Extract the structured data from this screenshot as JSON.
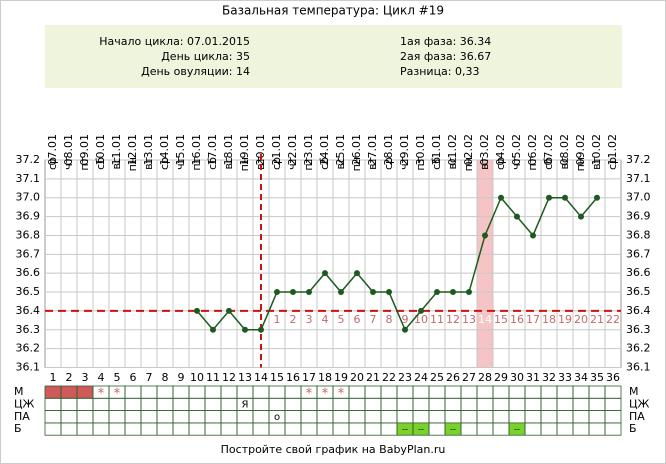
{
  "title": "Базальная температура: Цикл #19",
  "info": {
    "left": [
      "Начало цикла: 07.01.2015",
      "День цикла: 35",
      "День овуляции: 14"
    ],
    "right": [
      "1ая фаза: 36.34",
      "2ая фаза: 36.67",
      "Разница: 0,33"
    ]
  },
  "chart_data": {
    "type": "line",
    "categories": [
      1,
      2,
      3,
      4,
      5,
      6,
      7,
      8,
      9,
      10,
      11,
      12,
      13,
      14,
      15,
      16,
      17,
      18,
      19,
      20,
      21,
      22,
      23,
      24,
      25,
      26,
      27,
      28,
      29,
      30,
      31,
      32,
      33,
      34,
      35,
      36
    ],
    "dates": [
      "07.01",
      "08.01",
      "09.01",
      "10.01",
      "11.01",
      "12.01",
      "13.01",
      "14.01",
      "15.01",
      "16.01",
      "17.01",
      "18.01",
      "19.01",
      "20.01",
      "21.01",
      "22.01",
      "23.01",
      "24.01",
      "25.01",
      "26.01",
      "27.01",
      "28.01",
      "29.01",
      "30.01",
      "31.01",
      "01.02",
      "02.02",
      "03.02",
      "04.02",
      "05.02",
      "06.02",
      "07.02",
      "08.02",
      "09.02",
      "10.02",
      "11.02"
    ],
    "weekdays": [
      "ср",
      "чт",
      "пт",
      "сб",
      "вс",
      "пн",
      "вт",
      "ср",
      "чт",
      "пт",
      "сб",
      "вс",
      "пн",
      "вт",
      "ср",
      "чт",
      "пт",
      "сб",
      "вс",
      "пн",
      "вт",
      "ср",
      "чт",
      "пт",
      "сб",
      "вс",
      "пн",
      "вт",
      "ср",
      "чт",
      "пт",
      "сб",
      "вс",
      "пн",
      "вт",
      "ср"
    ],
    "series": [
      {
        "color": "#1e5a1e",
        "values": [
          null,
          null,
          null,
          null,
          null,
          null,
          null,
          null,
          null,
          36.4,
          36.3,
          36.4,
          36.3,
          36.3,
          36.5,
          36.5,
          36.5,
          36.6,
          36.5,
          36.6,
          36.5,
          36.5,
          36.3,
          36.4,
          36.5,
          36.5,
          36.5,
          36.8,
          37.0,
          36.9,
          36.8,
          37.0,
          37.0,
          36.9,
          37.0,
          null
        ]
      }
    ],
    "ylim": [
      36.1,
      37.2
    ],
    "yticks": [
      36.1,
      36.2,
      36.3,
      36.4,
      36.5,
      36.6,
      36.7,
      36.8,
      36.9,
      {
        "value": 37,
        "label": "37.0"
      },
      37.1,
      37.2
    ],
    "grid": true,
    "coverline": 36.4,
    "ovulation_day": 14,
    "highlight_day": 28,
    "moon_days": [
      4,
      34
    ],
    "luteal_days": [
      null,
      null,
      null,
      null,
      null,
      null,
      null,
      null,
      null,
      null,
      null,
      null,
      null,
      null,
      1,
      2,
      3,
      4,
      5,
      6,
      7,
      8,
      9,
      10,
      11,
      12,
      13,
      14,
      15,
      16,
      17,
      18,
      19,
      20,
      21,
      22
    ]
  },
  "table": {
    "rows": [
      {
        "label": "М",
        "fill_days": [
          1,
          2,
          3
        ],
        "fill_color": "#d05a5a",
        "cells": [
          null,
          null,
          null,
          "*",
          "*",
          null,
          null,
          null,
          null,
          null,
          null,
          null,
          null,
          null,
          null,
          null,
          "*",
          "*",
          "*",
          null,
          null,
          null,
          null,
          null,
          null,
          null,
          null,
          null,
          null,
          null,
          null,
          null,
          null,
          null,
          null,
          null
        ]
      },
      {
        "label": "ЦЖ",
        "fill_days": [],
        "fill_color": "#fff",
        "cells": [
          null,
          null,
          null,
          null,
          null,
          null,
          null,
          null,
          null,
          null,
          null,
          null,
          "Я",
          null,
          null,
          null,
          null,
          null,
          null,
          null,
          null,
          null,
          null,
          null,
          null,
          null,
          null,
          null,
          null,
          null,
          null,
          null,
          null,
          null,
          null,
          null
        ]
      },
      {
        "label": "ПА",
        "fill_days": [],
        "fill_color": "#fff",
        "cells": [
          null,
          null,
          null,
          null,
          null,
          null,
          null,
          null,
          null,
          null,
          null,
          null,
          null,
          null,
          "o",
          null,
          null,
          null,
          null,
          null,
          null,
          null,
          null,
          null,
          null,
          null,
          null,
          null,
          null,
          null,
          null,
          null,
          null,
          null,
          null,
          null
        ]
      },
      {
        "label": "Б",
        "fill_days": [
          23,
          24,
          26,
          30
        ],
        "fill_color": "#7bd12b",
        "cells": [
          null,
          null,
          null,
          null,
          null,
          null,
          null,
          null,
          null,
          null,
          null,
          null,
          null,
          null,
          null,
          null,
          null,
          null,
          null,
          null,
          null,
          null,
          "--",
          "--",
          null,
          "--",
          null,
          null,
          null,
          "--",
          null,
          null,
          null,
          null,
          null,
          null
        ]
      }
    ]
  },
  "footer": "Постройте свой график на BabyPlan.ru"
}
